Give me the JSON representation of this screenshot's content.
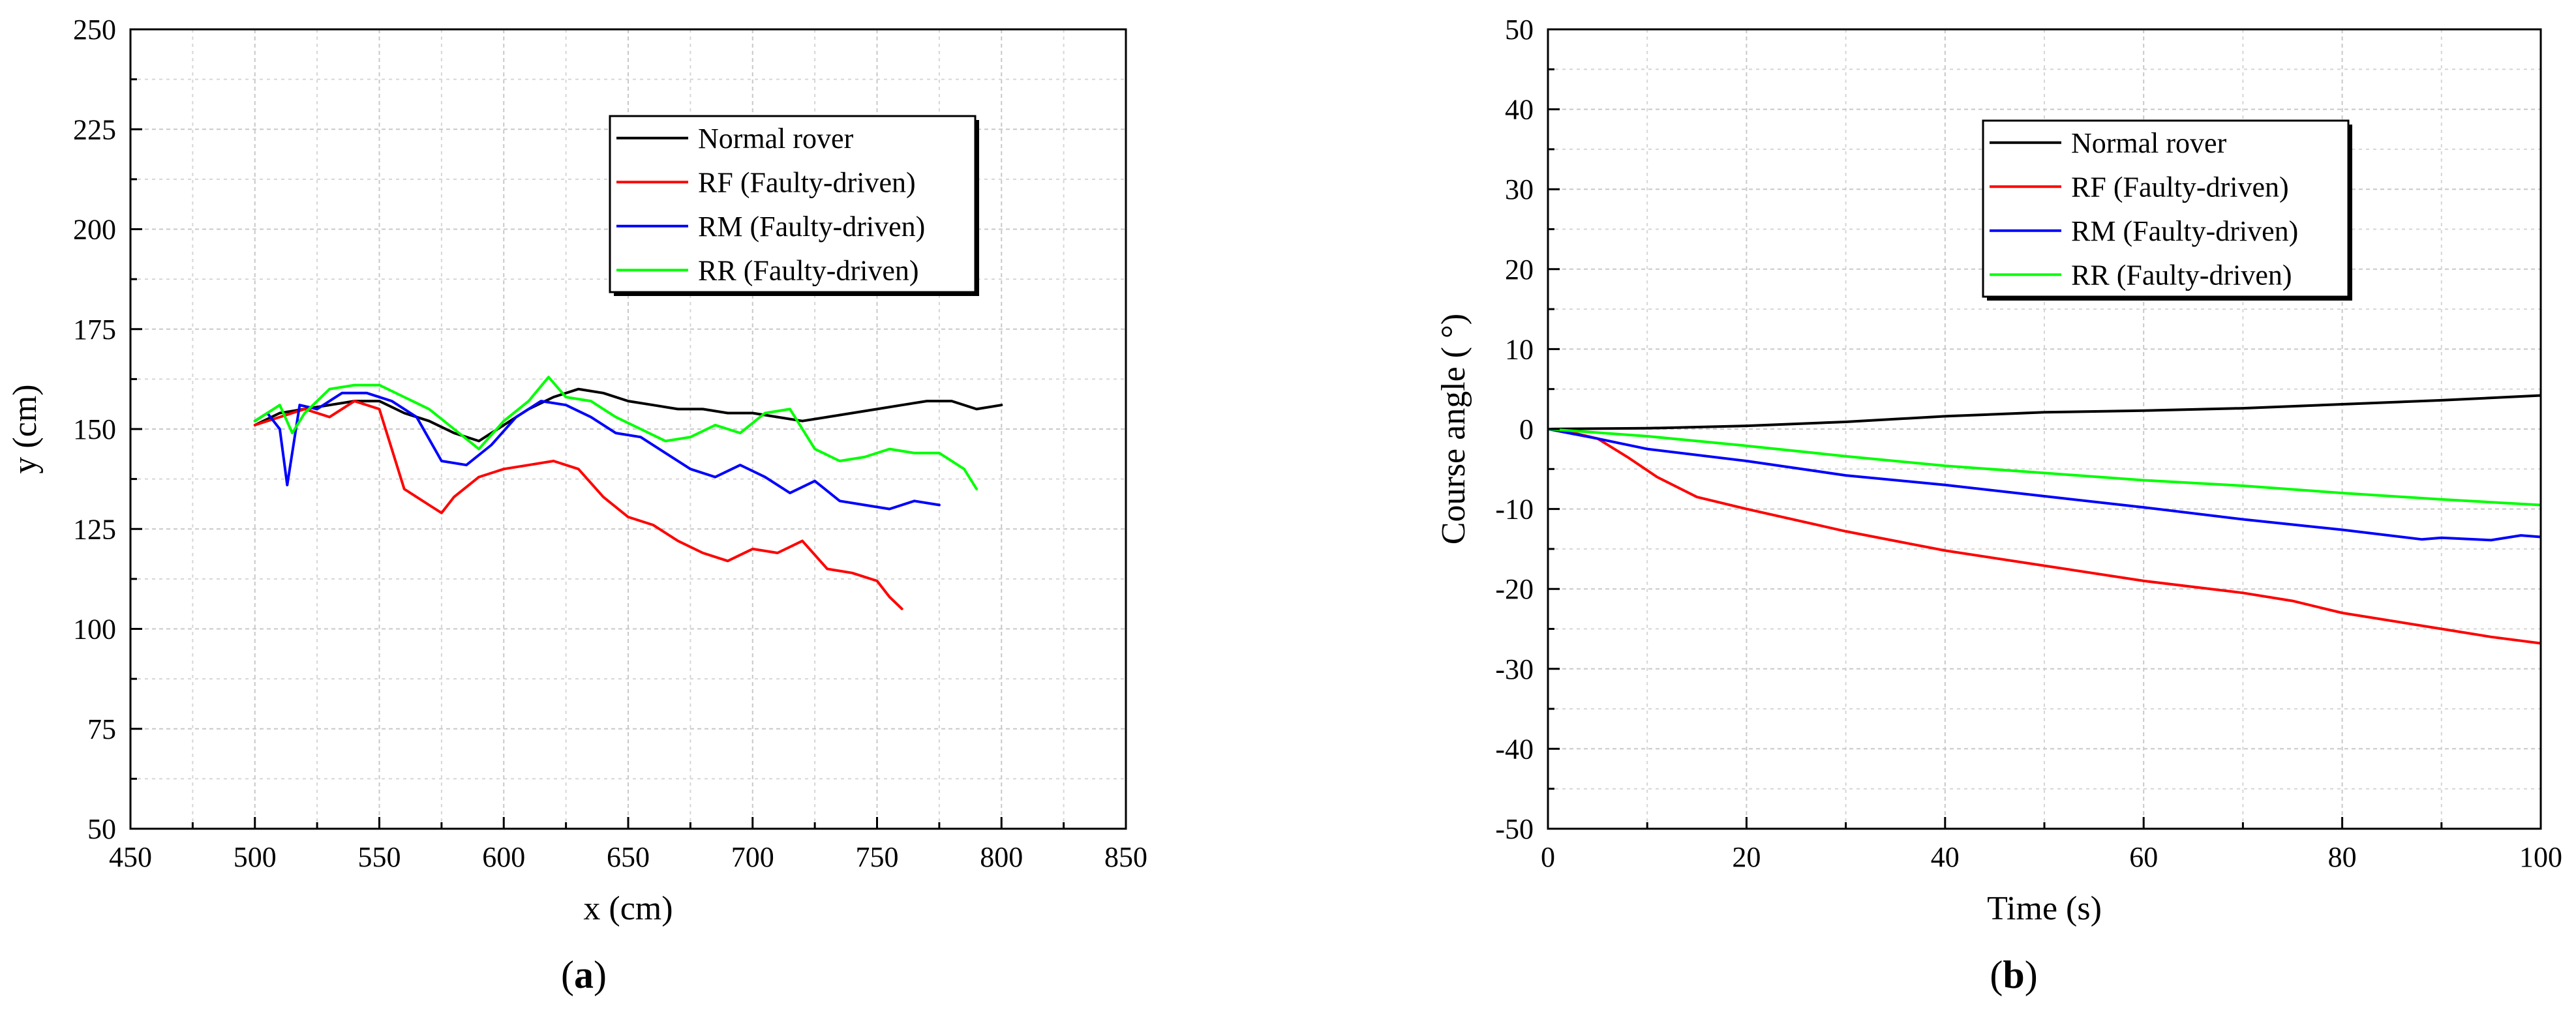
{
  "panels": [
    {
      "label": "a",
      "label_display": "(a)",
      "chart_data": {
        "type": "line",
        "title": "",
        "xlabel": "x (cm)",
        "ylabel": "y (cm)",
        "xlim": [
          450,
          850
        ],
        "ylim": [
          50,
          250
        ],
        "xticks": [
          450,
          500,
          550,
          600,
          650,
          700,
          750,
          800,
          850
        ],
        "yticks": [
          50,
          75,
          100,
          125,
          150,
          175,
          200,
          225,
          250
        ],
        "grid": true,
        "legend_position": "top-right",
        "series": [
          {
            "name": "Normal rover",
            "color": "#000000",
            "x": [
              500,
              510,
              520,
              530,
              540,
              550,
              560,
              570,
              580,
              590,
              600,
              610,
              620,
              630,
              640,
              650,
              660,
              670,
              680,
              690,
              700,
              710,
              720,
              730,
              740,
              750,
              760,
              770,
              780,
              790,
              800
            ],
            "y": [
              151,
              154,
              155,
              156,
              157,
              157,
              154,
              152,
              149,
              147,
              151,
              155,
              158,
              160,
              159,
              157,
              156,
              155,
              155,
              154,
              154,
              153,
              152,
              153,
              154,
              155,
              156,
              157,
              157,
              155,
              156
            ]
          },
          {
            "name": "RF (Faulty-driven)",
            "color": "#ff0000",
            "x": [
              500,
              510,
              520,
              530,
              540,
              550,
              555,
              560,
              570,
              575,
              580,
              590,
              600,
              610,
              620,
              630,
              640,
              650,
              660,
              670,
              680,
              690,
              700,
              710,
              720,
              730,
              740,
              750,
              755,
              760
            ],
            "y": [
              151,
              153,
              155,
              153,
              157,
              155,
              145,
              135,
              131,
              129,
              133,
              138,
              140,
              141,
              142,
              140,
              133,
              128,
              126,
              122,
              119,
              117,
              120,
              119,
              122,
              115,
              114,
              112,
              108,
              105
            ]
          },
          {
            "name": "RM (Faulty-driven)",
            "color": "#0000ff",
            "x": [
              500,
              505,
              510,
              513,
              518,
              525,
              535,
              545,
              555,
              565,
              575,
              585,
              595,
              605,
              615,
              625,
              635,
              645,
              655,
              665,
              675,
              685,
              695,
              705,
              715,
              725,
              735,
              745,
              755,
              765,
              775
            ],
            "y": [
              152,
              154,
              150,
              136,
              156,
              155,
              159,
              159,
              157,
              153,
              142,
              141,
              146,
              153,
              157,
              156,
              153,
              149,
              148,
              144,
              140,
              138,
              141,
              138,
              134,
              137,
              132,
              131,
              130,
              132,
              131
            ]
          },
          {
            "name": "RR (Faulty-driven)",
            "color": "#00ff00",
            "x": [
              500,
              510,
              515,
              520,
              530,
              540,
              550,
              560,
              570,
              580,
              590,
              600,
              610,
              618,
              625,
              635,
              645,
              655,
              665,
              675,
              685,
              695,
              705,
              715,
              725,
              735,
              745,
              755,
              765,
              775,
              785,
              790
            ],
            "y": [
              152,
              156,
              149,
              154,
              160,
              161,
              161,
              158,
              155,
              150,
              145,
              152,
              157,
              163,
              158,
              157,
              153,
              150,
              147,
              148,
              151,
              149,
              154,
              155,
              145,
              142,
              143,
              145,
              144,
              144,
              140,
              135
            ]
          }
        ]
      }
    },
    {
      "label": "b",
      "label_display": "(b)",
      "chart_data": {
        "type": "line",
        "title": "",
        "xlabel": "Time (s)",
        "ylabel": "Course angle ( °)",
        "xlim": [
          0,
          100
        ],
        "ylim": [
          -50,
          50
        ],
        "xticks": [
          0,
          20,
          40,
          60,
          80,
          100
        ],
        "yticks": [
          -50,
          -40,
          -30,
          -20,
          -10,
          0,
          10,
          20,
          30,
          40,
          50
        ],
        "grid": true,
        "legend_position": "top-right",
        "series": [
          {
            "name": "Normal rover",
            "color": "#000000",
            "x": [
              0,
              10,
              20,
              30,
              40,
              50,
              60,
              70,
              80,
              90,
              100
            ],
            "y": [
              0,
              0.1,
              0.4,
              0.9,
              1.6,
              2.1,
              2.3,
              2.6,
              3.1,
              3.6,
              4.2
            ]
          },
          {
            "name": "RF (Faulty-driven)",
            "color": "#ff0000",
            "x": [
              0,
              2,
              5,
              8,
              11,
              15,
              20,
              30,
              40,
              50,
              60,
              70,
              75,
              80,
              90,
              95,
              100
            ],
            "y": [
              0,
              -0.3,
              -1.2,
              -3.5,
              -6,
              -8.5,
              -10,
              -12.8,
              -15.2,
              -17.1,
              -19,
              -20.5,
              -21.5,
              -23,
              -25,
              -26,
              -26.8
            ]
          },
          {
            "name": "RM (Faulty-driven)",
            "color": "#0000ff",
            "x": [
              0,
              5,
              10,
              20,
              30,
              40,
              50,
              60,
              70,
              80,
              88,
              90,
              95,
              98,
              100
            ],
            "y": [
              0,
              -1.2,
              -2.5,
              -4,
              -5.8,
              -7,
              -8.4,
              -9.8,
              -11.3,
              -12.6,
              -13.8,
              -13.6,
              -13.9,
              -13.3,
              -13.5
            ]
          },
          {
            "name": "RR (Faulty-driven)",
            "color": "#00ff00",
            "x": [
              0,
              10,
              20,
              30,
              40,
              50,
              60,
              70,
              80,
              90,
              100
            ],
            "y": [
              0,
              -0.9,
              -2.1,
              -3.4,
              -4.6,
              -5.5,
              -6.4,
              -7.1,
              -8,
              -8.8,
              -9.5
            ]
          }
        ]
      }
    }
  ]
}
